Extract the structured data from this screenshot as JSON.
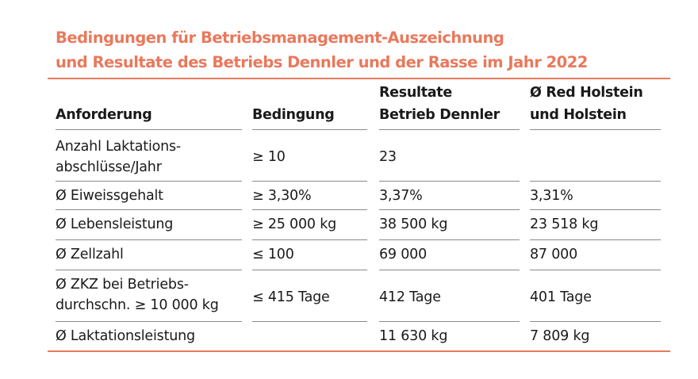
{
  "title": {
    "line1": "Bedingungen für Betriebsmanagement-Auszeichnung",
    "line2": "und Resultate des Betriebs Dennler und der Rasse im Jahr 2022"
  },
  "headers": {
    "anforderung": "Anforderung",
    "bedingung": "Bedingung",
    "resultate_line1": "Resultate",
    "resultate_line2": "Betrieb Dennler",
    "rasse_line1": "Ø Red Holstein",
    "rasse_line2": "und Holstein"
  },
  "rows": [
    {
      "anforderung_line1": "Anzahl Laktations-",
      "anforderung_line2": "abschlüsse/Jahr",
      "bedingung": "≥ 10",
      "resultat": "23",
      "rasse": ""
    },
    {
      "anforderung": "Ø Eiweissgehalt",
      "bedingung": "≥ 3,30%",
      "resultat": "3,37%",
      "rasse": "3,31%"
    },
    {
      "anforderung": "Ø Lebensleistung",
      "bedingung": "≥ 25 000 kg",
      "resultat": "38 500 kg",
      "rasse": "23 518 kg"
    },
    {
      "anforderung": "Ø Zellzahl",
      "bedingung": "≤ 100",
      "resultat": "69 000",
      "rasse": "87 000"
    },
    {
      "anforderung_line1": "Ø ZKZ bei Betriebs-",
      "anforderung_line2": "durchschn. ≥ 10 000 kg",
      "bedingung": "≤ 415 Tage",
      "resultat": "412 Tage",
      "rasse": "401 Tage"
    },
    {
      "anforderung": "Ø Laktationsleistung",
      "bedingung": "",
      "resultat": "11 630 kg",
      "rasse": "7 809 kg"
    }
  ],
  "colors": {
    "accent": "#e8795c",
    "text": "#1a1a1a",
    "separator": "#8a8a8a"
  }
}
